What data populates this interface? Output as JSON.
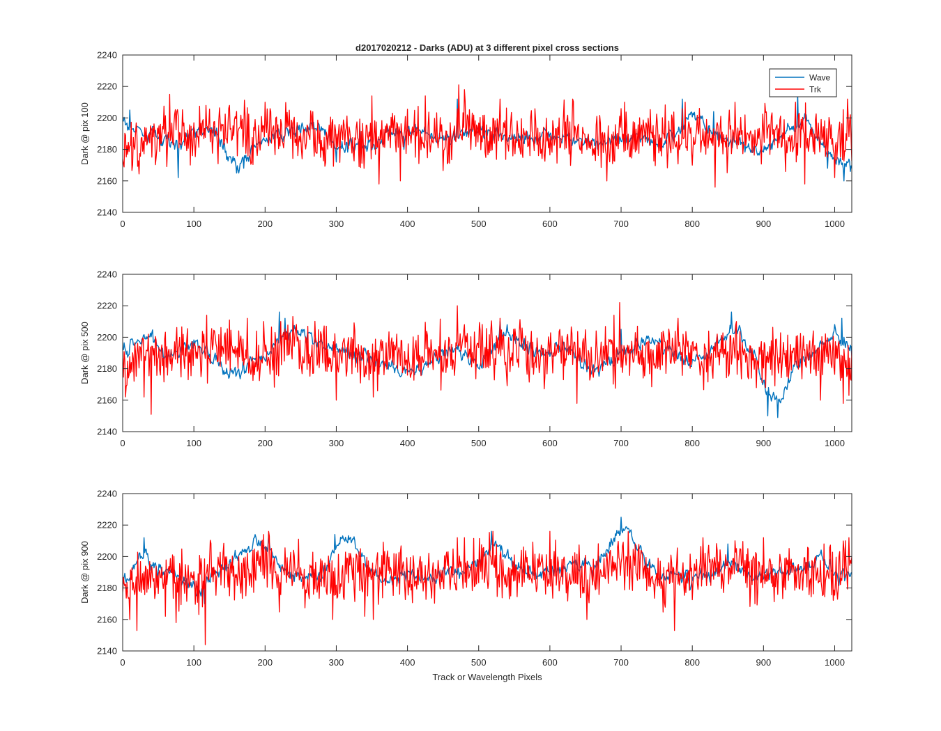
{
  "figure": {
    "title": "d2017020212 - Darks (ADU) at 3 different pixel cross sections",
    "xlabel": "Track or Wavelength Pixels"
  },
  "colors": {
    "wave": "#0072BD",
    "trk": "#FF0000",
    "axis": "#262626"
  },
  "legend": {
    "placement": "top-right",
    "entries": [
      "Wave",
      "Trk"
    ]
  },
  "chart_data": [
    {
      "type": "line",
      "ylabel": "Dark @ pix 100",
      "xlim": [
        0,
        1024
      ],
      "ylim": [
        2140,
        2240
      ],
      "xticks": [
        0,
        100,
        200,
        300,
        400,
        500,
        600,
        700,
        800,
        900,
        1000
      ],
      "yticks": [
        2140,
        2160,
        2180,
        2200,
        2220,
        2240
      ],
      "grid": false,
      "series": [
        {
          "name": "Wave",
          "x": [
            0,
            20,
            40,
            60,
            80,
            100,
            120,
            140,
            150,
            160,
            170,
            180,
            200,
            220,
            240,
            260,
            280,
            300,
            320,
            340,
            360,
            380,
            400,
            420,
            440,
            460,
            480,
            500,
            520,
            540,
            560,
            580,
            600,
            620,
            640,
            660,
            680,
            700,
            720,
            740,
            760,
            780,
            800,
            820,
            840,
            860,
            880,
            900,
            920,
            940,
            960,
            980,
            1000,
            1024
          ],
          "y": [
            2198,
            2193,
            2190,
            2186,
            2182,
            2192,
            2193,
            2185,
            2175,
            2169,
            2170,
            2178,
            2186,
            2188,
            2192,
            2195,
            2194,
            2180,
            2182,
            2183,
            2182,
            2190,
            2190,
            2191,
            2188,
            2186,
            2190,
            2194,
            2189,
            2188,
            2187,
            2186,
            2190,
            2189,
            2186,
            2184,
            2186,
            2187,
            2188,
            2185,
            2184,
            2192,
            2202,
            2195,
            2188,
            2184,
            2180,
            2180,
            2186,
            2195,
            2198,
            2185,
            2174,
            2170
          ]
        },
        {
          "name": "Trk",
          "x": [
            0,
            20,
            40,
            60,
            80,
            100,
            120,
            140,
            160,
            180,
            200,
            220,
            240,
            260,
            280,
            300,
            320,
            340,
            360,
            380,
            400,
            420,
            440,
            460,
            480,
            500,
            520,
            540,
            560,
            580,
            600,
            620,
            640,
            660,
            680,
            700,
            720,
            740,
            760,
            780,
            800,
            820,
            840,
            860,
            880,
            900,
            920,
            940,
            960,
            980,
            1000,
            1024
          ],
          "y": [
            2170,
            2180,
            2187,
            2192,
            2190,
            2186,
            2196,
            2188,
            2192,
            2186,
            2190,
            2194,
            2188,
            2192,
            2184,
            2190,
            2186,
            2183,
            2188,
            2192,
            2188,
            2186,
            2192,
            2184,
            2195,
            2190,
            2188,
            2194,
            2186,
            2190,
            2186,
            2192,
            2188,
            2190,
            2184,
            2190,
            2186,
            2192,
            2188,
            2184,
            2194,
            2186,
            2188,
            2190,
            2184,
            2190,
            2188,
            2186,
            2192,
            2188,
            2186,
            2190
          ]
        }
      ],
      "extremes": {
        "Trk": {
          "x": [
            66,
            76,
            150,
            200,
            267,
            350,
            360,
            390,
            425,
            472,
            480,
            530,
            632,
            680,
            705,
            790,
            800,
            832,
            860,
            945,
            958,
            1000,
            1018
          ],
          "y": [
            2215,
            2204,
            2208,
            2210,
            2204,
            2214,
            2158,
            2160,
            2214,
            2221,
            2218,
            2212,
            2212,
            2160,
            2210,
            2210,
            2170,
            2156,
            2210,
            2210,
            2158,
            2162,
            2212
          ]
        },
        "Wave": {
          "x": [
            10,
            78,
            160,
            170,
            300,
            333,
            395,
            470,
            786,
            830,
            948,
            990,
            1013,
            1022
          ],
          "y": [
            2205,
            2162,
            2165,
            2168,
            2172,
            2198,
            2180,
            2212,
            2212,
            2204,
            2216,
            2168,
            2160,
            2166
          ]
        }
      }
    },
    {
      "type": "line",
      "ylabel": "Dark @ pix 500",
      "xlim": [
        0,
        1024
      ],
      "ylim": [
        2140,
        2240
      ],
      "xticks": [
        0,
        100,
        200,
        300,
        400,
        500,
        600,
        700,
        800,
        900,
        1000
      ],
      "yticks": [
        2140,
        2160,
        2180,
        2200,
        2220,
        2240
      ],
      "grid": false,
      "series": [
        {
          "name": "Wave",
          "x": [
            0,
            20,
            40,
            60,
            80,
            100,
            120,
            140,
            160,
            180,
            200,
            220,
            240,
            260,
            280,
            300,
            320,
            340,
            360,
            380,
            400,
            420,
            440,
            460,
            480,
            500,
            520,
            540,
            560,
            580,
            600,
            620,
            640,
            660,
            680,
            700,
            720,
            740,
            760,
            780,
            800,
            820,
            840,
            860,
            880,
            890,
            900,
            910,
            920,
            930,
            940,
            960,
            980,
            1000,
            1024
          ],
          "y": [
            2190,
            2196,
            2200,
            2188,
            2192,
            2196,
            2190,
            2180,
            2178,
            2184,
            2188,
            2198,
            2204,
            2200,
            2196,
            2192,
            2188,
            2186,
            2184,
            2180,
            2178,
            2182,
            2188,
            2194,
            2188,
            2182,
            2192,
            2204,
            2196,
            2190,
            2188,
            2194,
            2186,
            2178,
            2184,
            2190,
            2196,
            2200,
            2194,
            2188,
            2186,
            2190,
            2200,
            2206,
            2194,
            2185,
            2172,
            2164,
            2158,
            2166,
            2176,
            2188,
            2196,
            2204,
            2188
          ]
        },
        {
          "name": "Trk",
          "x": [
            0,
            20,
            40,
            60,
            80,
            100,
            120,
            140,
            160,
            180,
            200,
            220,
            240,
            260,
            280,
            300,
            320,
            340,
            360,
            380,
            400,
            420,
            440,
            460,
            480,
            500,
            520,
            540,
            560,
            580,
            600,
            620,
            640,
            660,
            680,
            700,
            720,
            740,
            760,
            780,
            800,
            820,
            840,
            860,
            880,
            900,
            920,
            940,
            960,
            980,
            1000,
            1024
          ],
          "y": [
            2182,
            2186,
            2190,
            2188,
            2192,
            2186,
            2190,
            2194,
            2188,
            2186,
            2192,
            2188,
            2196,
            2190,
            2194,
            2188,
            2192,
            2186,
            2188,
            2190,
            2184,
            2188,
            2186,
            2190,
            2194,
            2196,
            2192,
            2188,
            2194,
            2186,
            2190,
            2188,
            2192,
            2186,
            2190,
            2188,
            2194,
            2186,
            2190,
            2192,
            2188,
            2186,
            2190,
            2192,
            2188,
            2186,
            2190,
            2188,
            2192,
            2186,
            2188,
            2180
          ]
        }
      ],
      "extremes": {
        "Trk": {
          "x": [
            30,
            40,
            118,
            175,
            198,
            222,
            300,
            352,
            470,
            480,
            530,
            638,
            690,
            698,
            780,
            862,
            903,
            935,
            980,
            1012,
            1020
          ],
          "y": [
            2162,
            2151,
            2214,
            2212,
            2210,
            2210,
            2160,
            2162,
            2220,
            2208,
            2212,
            2158,
            2214,
            2222,
            2212,
            2210,
            2168,
            2174,
            2160,
            2158,
            2163
          ]
        },
        "Wave": {
          "x": [
            220,
            228,
            530,
            700,
            855,
            906,
            920,
            1010,
            1013
          ],
          "y": [
            2216,
            2212,
            2210,
            2205,
            2216,
            2150,
            2149,
            2212,
            2200
          ]
        }
      }
    },
    {
      "type": "line",
      "ylabel": "Dark @ pix 900",
      "xlim": [
        0,
        1024
      ],
      "ylim": [
        2140,
        2240
      ],
      "xticks": [
        0,
        100,
        200,
        300,
        400,
        500,
        600,
        700,
        800,
        900,
        1000
      ],
      "yticks": [
        2140,
        2160,
        2180,
        2200,
        2220,
        2240
      ],
      "grid": false,
      "series": [
        {
          "name": "Wave",
          "x": [
            0,
            20,
            30,
            40,
            60,
            80,
            100,
            110,
            120,
            140,
            160,
            180,
            200,
            220,
            240,
            260,
            280,
            300,
            320,
            340,
            360,
            380,
            400,
            420,
            440,
            460,
            480,
            500,
            520,
            540,
            560,
            580,
            600,
            620,
            640,
            660,
            680,
            700,
            710,
            720,
            740,
            760,
            780,
            800,
            820,
            840,
            860,
            880,
            900,
            920,
            940,
            960,
            980,
            1000,
            1024
          ],
          "y": [
            2180,
            2198,
            2204,
            2196,
            2190,
            2186,
            2182,
            2176,
            2186,
            2192,
            2200,
            2208,
            2206,
            2194,
            2188,
            2186,
            2190,
            2206,
            2212,
            2196,
            2184,
            2186,
            2190,
            2188,
            2186,
            2192,
            2190,
            2196,
            2208,
            2200,
            2192,
            2188,
            2190,
            2194,
            2196,
            2192,
            2202,
            2216,
            2218,
            2208,
            2194,
            2186,
            2188,
            2186,
            2190,
            2192,
            2194,
            2188,
            2186,
            2190,
            2192,
            2194,
            2200,
            2188,
            2188
          ]
        },
        {
          "name": "Trk",
          "x": [
            0,
            20,
            40,
            60,
            80,
            100,
            120,
            140,
            160,
            180,
            200,
            220,
            240,
            260,
            280,
            300,
            320,
            340,
            360,
            380,
            400,
            420,
            440,
            460,
            480,
            500,
            520,
            540,
            560,
            580,
            600,
            620,
            640,
            660,
            680,
            700,
            720,
            740,
            760,
            780,
            800,
            820,
            840,
            860,
            880,
            900,
            920,
            940,
            960,
            980,
            1000,
            1024
          ],
          "y": [
            2176,
            2188,
            2182,
            2190,
            2186,
            2184,
            2190,
            2194,
            2186,
            2190,
            2196,
            2188,
            2192,
            2186,
            2190,
            2184,
            2188,
            2190,
            2186,
            2192,
            2188,
            2190,
            2184,
            2192,
            2188,
            2196,
            2192,
            2186,
            2190,
            2188,
            2192,
            2186,
            2190,
            2188,
            2192,
            2196,
            2194,
            2188,
            2186,
            2190,
            2188,
            2192,
            2190,
            2194,
            2188,
            2186,
            2190,
            2194,
            2192,
            2186,
            2190,
            2194
          ]
        }
      ],
      "extremes": {
        "Trk": {
          "x": [
            10,
            20,
            60,
            75,
            112,
            116,
            198,
            205,
            240,
            295,
            340,
            352,
            470,
            480,
            520,
            600,
            652,
            720,
            775,
            815,
            860,
            900,
            985,
            1015,
            1020
          ],
          "y": [
            2160,
            2153,
            2162,
            2158,
            2168,
            2144,
            2214,
            2216,
            2204,
            2160,
            2162,
            2160,
            2212,
            2212,
            2216,
            2216,
            2160,
            2208,
            2153,
            2212,
            2210,
            2212,
            2208,
            2210,
            2212
          ]
        },
        "Wave": {
          "x": [
            30,
            115,
            205,
            298,
            305,
            518,
            700,
            706,
            850
          ],
          "y": [
            2212,
            2170,
            2214,
            2214,
            2208,
            2216,
            2225,
            2218,
            2208
          ]
        }
      }
    }
  ]
}
